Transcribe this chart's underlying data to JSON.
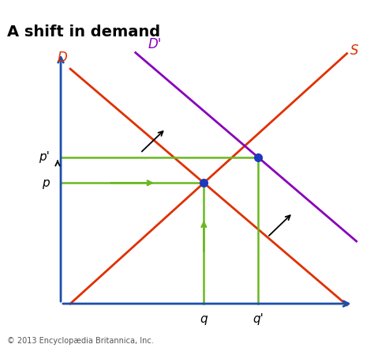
{
  "title": "A shift in demand",
  "title_fontsize": 14,
  "title_fontweight": "bold",
  "background_color": "#ffffff",
  "axis_color": "#1a4faa",
  "xlim": [
    0,
    10
  ],
  "ylim": [
    0,
    10
  ],
  "copyright": "© 2013 Encyclopædia Britannica, Inc.",
  "supply_color": "#e03000",
  "demand2_color": "#8800bb",
  "green_color": "#6ab820",
  "dot_color": "#1a3abf",
  "eq1": [
    5.0,
    4.8
  ],
  "eq2": [
    6.7,
    5.75
  ],
  "p_y": 4.8,
  "pp_y": 5.75,
  "q_x": 5.0,
  "qp_x": 6.7
}
